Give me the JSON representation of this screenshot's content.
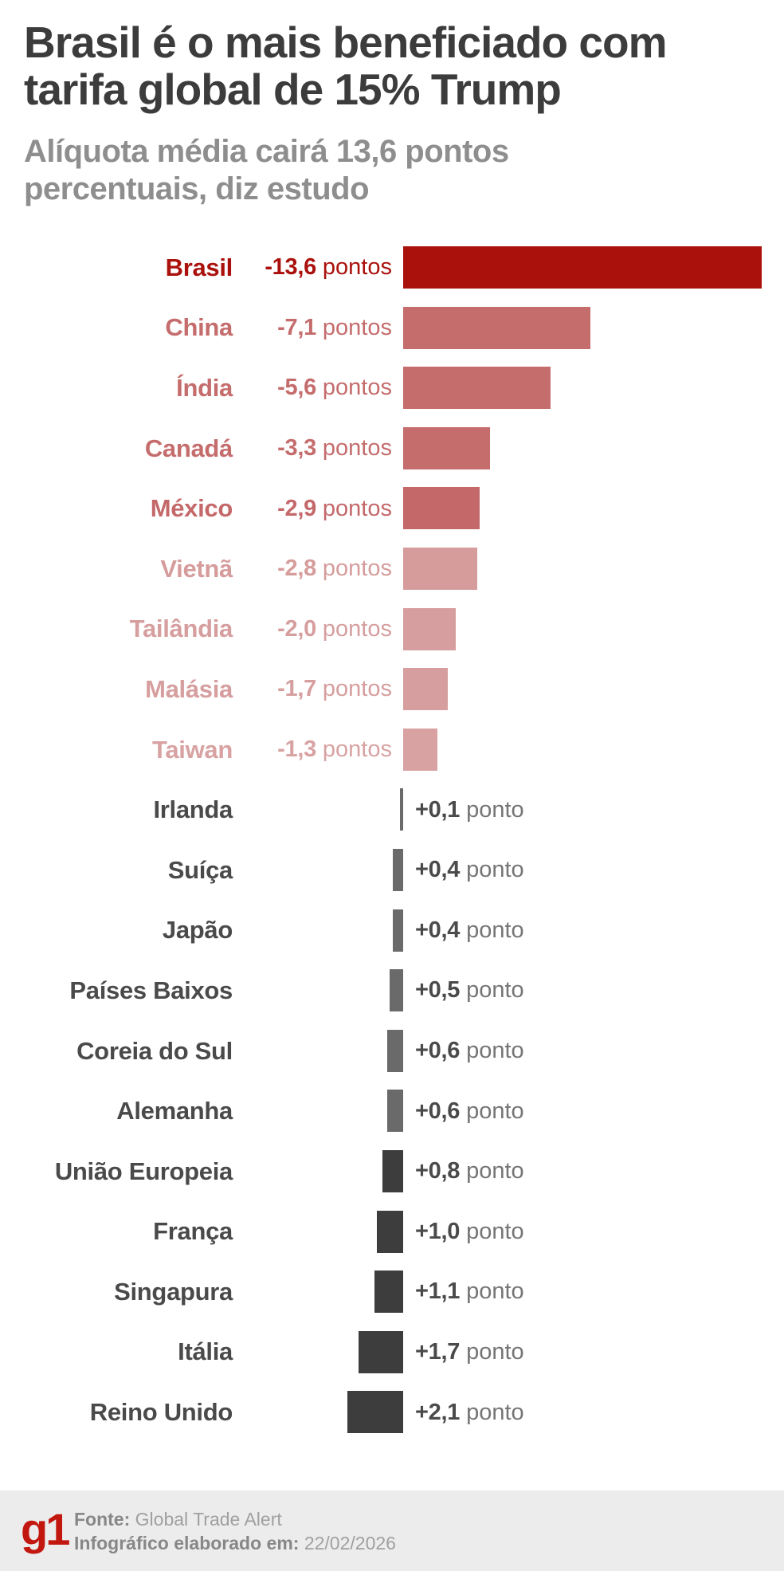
{
  "header": {
    "title": "Brasil é o mais beneficiado com\ntarifa global de 15% Trump",
    "subtitle": "Alíquota média cairá 13,6 pontos\npercentuais, diz estudo"
  },
  "chart_data": {
    "type": "bar",
    "orientation": "horizontal",
    "description": "Change in average tariff rate in percentage points; negative (red, right of axis) = reduction, positive (gray, left of axis) = increase",
    "unit_negative": "pontos",
    "unit_positive": "ponto",
    "rows": [
      {
        "country": "Brasil",
        "value": -13.6,
        "value_label": "-13,6",
        "unit": "pontos",
        "bar_color": "#aa110d",
        "label_color": "#aa110d"
      },
      {
        "country": "China",
        "value": -7.1,
        "value_label": "-7,1",
        "unit": "pontos",
        "bar_color": "#c56c6c",
        "label_color": "#c56c6c"
      },
      {
        "country": "Índia",
        "value": -5.6,
        "value_label": "-5,6",
        "unit": "pontos",
        "bar_color": "#c56c6c",
        "label_color": "#c56c6c"
      },
      {
        "country": "Canadá",
        "value": -3.3,
        "value_label": "-3,3",
        "unit": "pontos",
        "bar_color": "#c56c6c",
        "label_color": "#c56c6c"
      },
      {
        "country": "México",
        "value": -2.9,
        "value_label": "-2,9",
        "unit": "pontos",
        "bar_color": "#c4686a",
        "label_color": "#c4686a"
      },
      {
        "country": "Vietnã",
        "value": -2.8,
        "value_label": "-2,8",
        "unit": "pontos",
        "bar_color": "#d69c9c",
        "label_color": "#d69c9c"
      },
      {
        "country": "Tailândia",
        "value": -2.0,
        "value_label": "-2,0",
        "unit": "pontos",
        "bar_color": "#d69e9e",
        "label_color": "#d69e9e"
      },
      {
        "country": "Malásia",
        "value": -1.7,
        "value_label": "-1,7",
        "unit": "pontos",
        "bar_color": "#d69e9e",
        "label_color": "#d69e9e"
      },
      {
        "country": "Taiwan",
        "value": -1.3,
        "value_label": "-1,3",
        "unit": "pontos",
        "bar_color": "#d8a2a2",
        "label_color": "#d8a2a2"
      },
      {
        "country": "Irlanda",
        "value": 0.1,
        "value_label": "+0,1",
        "unit": "ponto",
        "bar_color": "#6a6a6a",
        "label_color": "#4a4a4a"
      },
      {
        "country": "Suíça",
        "value": 0.4,
        "value_label": "+0,4",
        "unit": "ponto",
        "bar_color": "#6a6a6a",
        "label_color": "#4a4a4a"
      },
      {
        "country": "Japão",
        "value": 0.4,
        "value_label": "+0,4",
        "unit": "ponto",
        "bar_color": "#6a6a6a",
        "label_color": "#4a4a4a"
      },
      {
        "country": "Países Baixos",
        "value": 0.5,
        "value_label": "+0,5",
        "unit": "ponto",
        "bar_color": "#6a6a6a",
        "label_color": "#4a4a4a"
      },
      {
        "country": "Coreia do Sul",
        "value": 0.6,
        "value_label": "+0,6",
        "unit": "ponto",
        "bar_color": "#6a6a6a",
        "label_color": "#4a4a4a"
      },
      {
        "country": "Alemanha",
        "value": 0.6,
        "value_label": "+0,6",
        "unit": "ponto",
        "bar_color": "#6a6a6a",
        "label_color": "#4a4a4a"
      },
      {
        "country": "União Europeia",
        "value": 0.8,
        "value_label": "+0,8",
        "unit": "ponto",
        "bar_color": "#3d3d3d",
        "label_color": "#4a4a4a"
      },
      {
        "country": "França",
        "value": 1.0,
        "value_label": "+1,0",
        "unit": "ponto",
        "bar_color": "#3d3d3d",
        "label_color": "#4a4a4a"
      },
      {
        "country": "Singapura",
        "value": 1.1,
        "value_label": "+1,1",
        "unit": "ponto",
        "bar_color": "#3d3d3d",
        "label_color": "#4a4a4a"
      },
      {
        "country": "Itália",
        "value": 1.7,
        "value_label": "+1,7",
        "unit": "ponto",
        "bar_color": "#3d3d3d",
        "label_color": "#4a4a4a"
      },
      {
        "country": "Reino Unido",
        "value": 2.1,
        "value_label": "+2,1",
        "unit": "ponto",
        "bar_color": "#3d3d3d",
        "label_color": "#4a4a4a"
      }
    ],
    "colors": {
      "value_unit_positive_text": "#757575",
      "value_number_positive_text": "#4a4a4a",
      "footer_background": "#ececec",
      "g1_brand_red": "#c2170f",
      "title_text": "#3c3c3c",
      "subtitle_text": "#8e8e8e"
    },
    "axis": {
      "zero_baseline": true,
      "gridlines": false,
      "legend": "none"
    }
  },
  "footer": {
    "logo": "g1",
    "source_label": "Fonte:",
    "source": "Global Trade Alert",
    "date_label": "Infográfico elaborado em:",
    "date": "22/02/2026"
  }
}
